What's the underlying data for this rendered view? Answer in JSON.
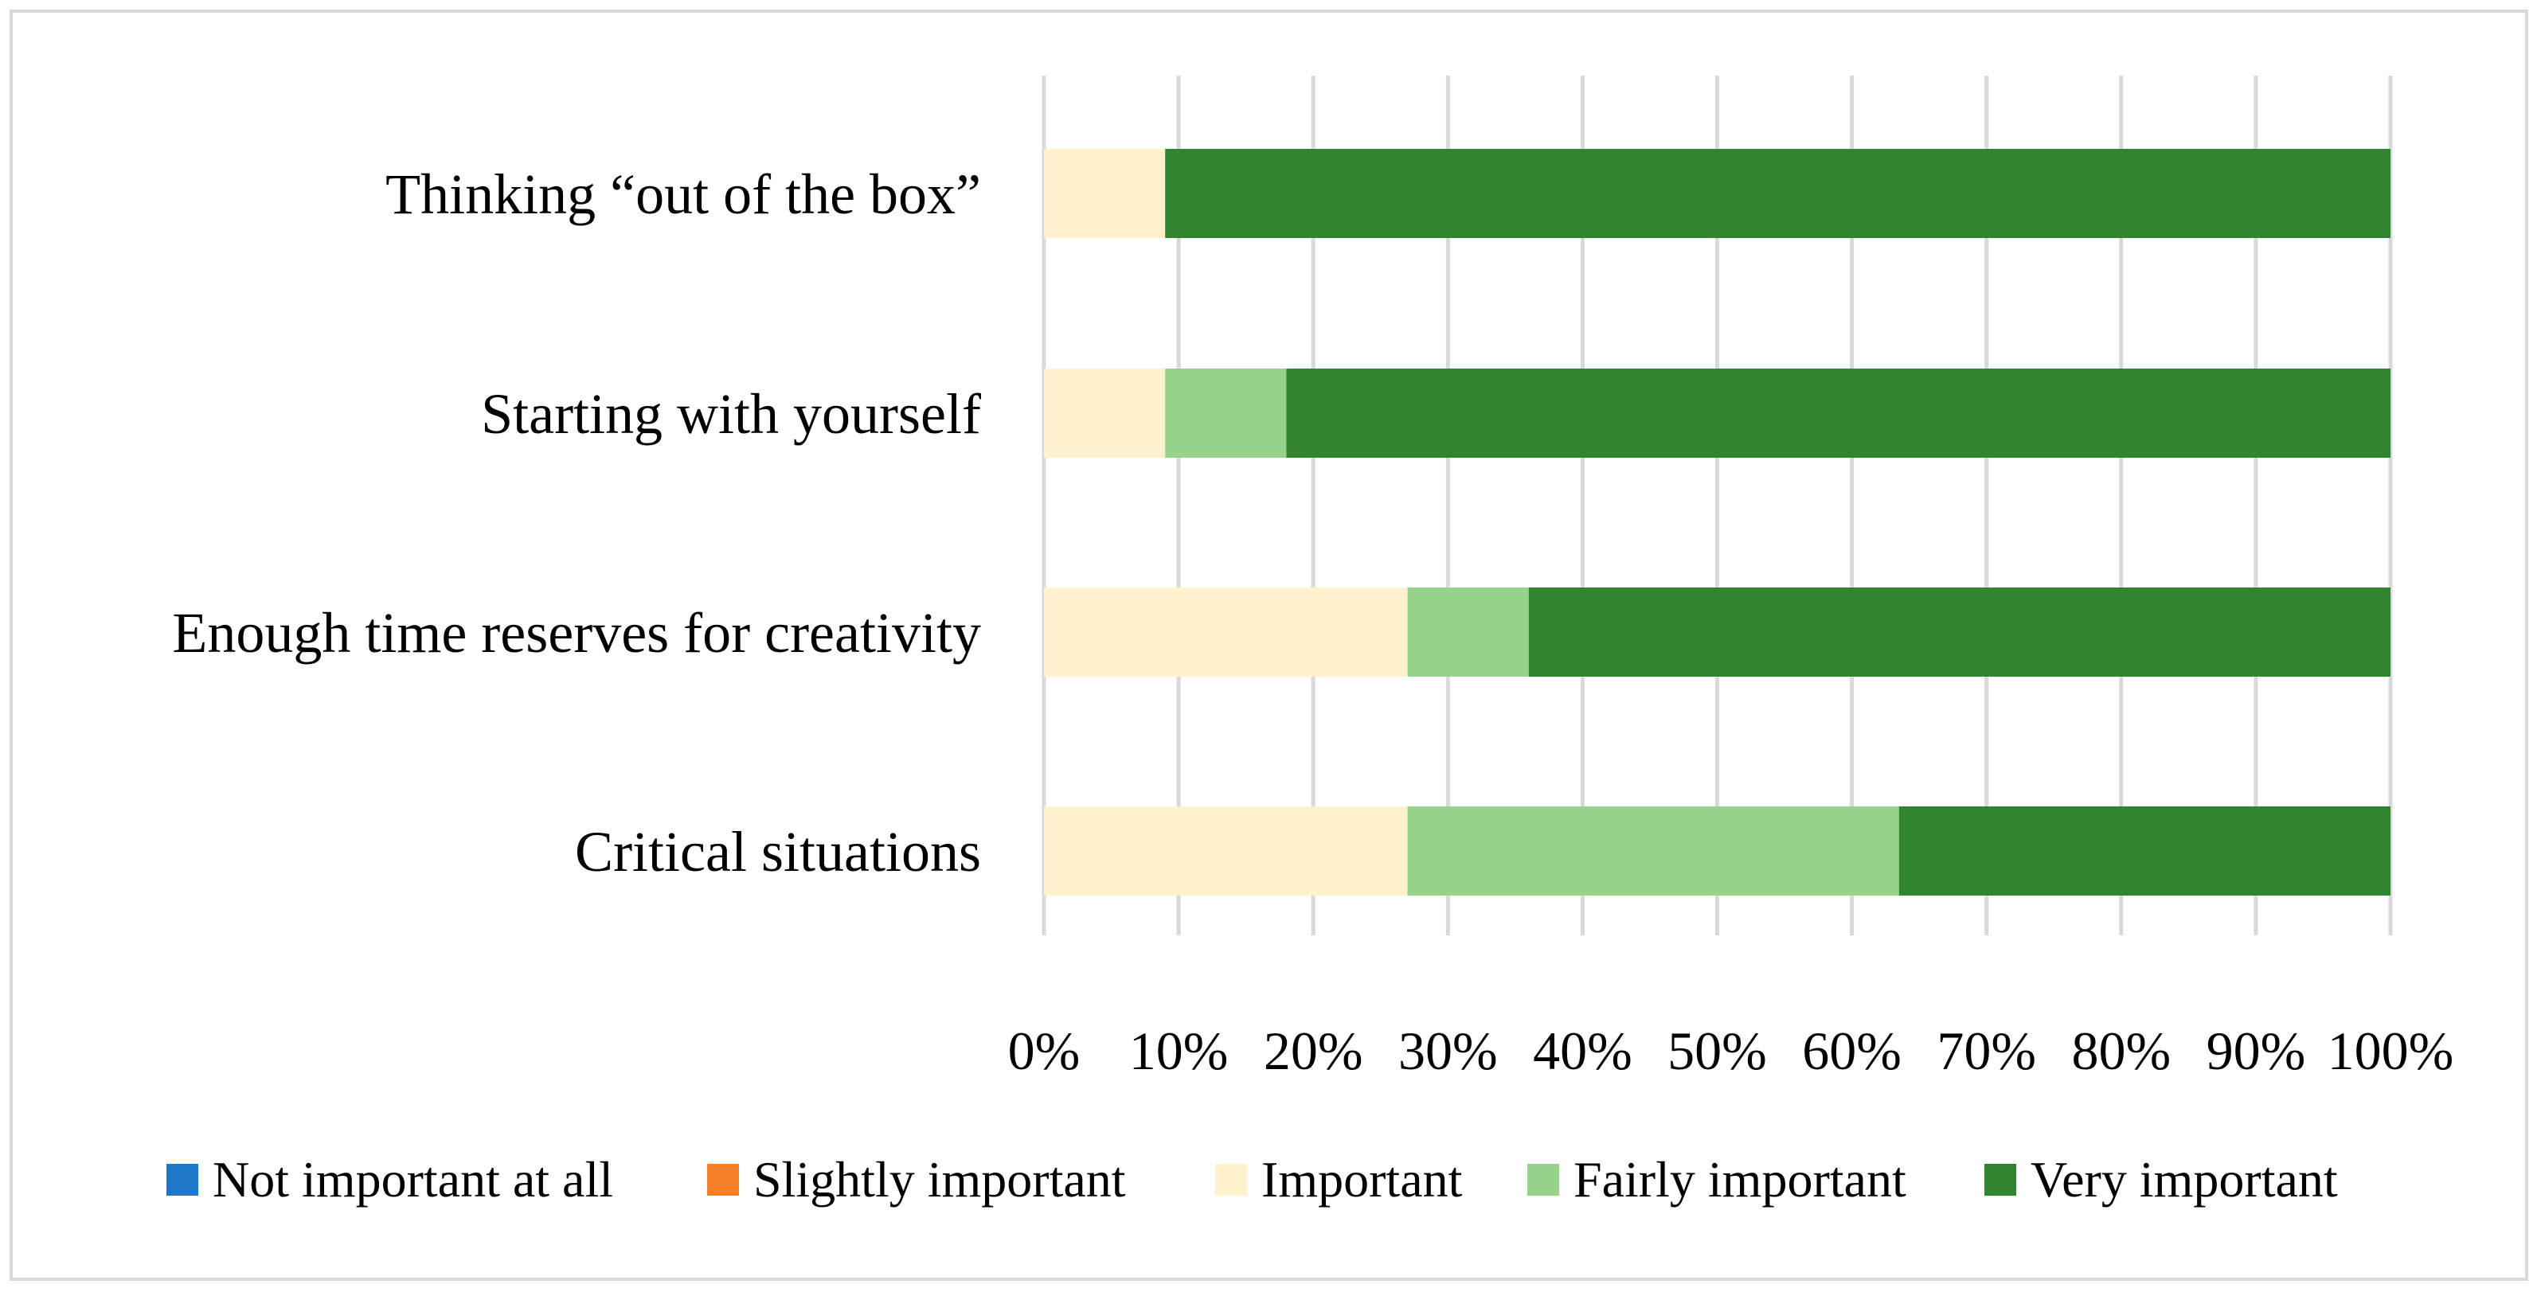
{
  "chart_data": {
    "type": "bar",
    "orientation": "horizontal",
    "stacked": "percent",
    "categories": [
      "Thinking “out of the box”",
      "Starting with yourself",
      "Enough time reserves for creativity",
      "Critical situations"
    ],
    "series": [
      {
        "name": "Not important at all",
        "color": "#1f77c9",
        "values": [
          0,
          0,
          0,
          0
        ]
      },
      {
        "name": "Slightly important",
        "color": "#f6802a",
        "values": [
          0,
          0,
          0,
          0
        ]
      },
      {
        "name": "Important",
        "color": "#fff2cc",
        "values": [
          9,
          9,
          27,
          27
        ]
      },
      {
        "name": "Fairly important",
        "color": "#98d38c",
        "values": [
          0,
          9,
          9,
          36.5
        ]
      },
      {
        "name": "Very important",
        "color": "#31852e",
        "values": [
          91,
          82,
          64,
          36.5
        ]
      }
    ],
    "x_ticks": [
      "0%",
      "10%",
      "20%",
      "30%",
      "40%",
      "50%",
      "60%",
      "70%",
      "80%",
      "90%",
      "100%"
    ],
    "xlim": [
      0,
      100
    ],
    "grid": "vertical",
    "gridline_color": "#d9d9d9",
    "legend_position": "bottom"
  }
}
